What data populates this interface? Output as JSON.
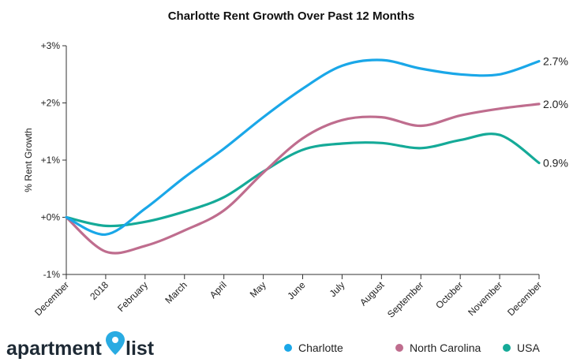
{
  "brand": {
    "logo_word_1": "apartment",
    "logo_word_2": "list",
    "pin_color": "#29abe2",
    "text_color": "#1e2a35"
  },
  "chart_data": {
    "type": "line",
    "title": "Charlotte Rent Growth Over Past 12 Months",
    "xlabel": "",
    "ylabel": "% Rent Growth",
    "categories": [
      "December",
      "2018",
      "February",
      "March",
      "April",
      "May",
      "June",
      "July",
      "August",
      "September",
      "October",
      "November",
      "December"
    ],
    "yticks": [
      {
        "value": 3,
        "label": "+3%"
      },
      {
        "value": 2,
        "label": "+2%"
      },
      {
        "value": 1,
        "label": "+1%"
      },
      {
        "value": 0,
        "label": "+0%"
      },
      {
        "value": -1,
        "label": "-1%"
      }
    ],
    "ylim": [
      -1,
      3
    ],
    "grid": false,
    "legend_position": "bottom-right",
    "series": [
      {
        "name": "Charlotte",
        "color": "#1aa7e8",
        "end_label": "2.7%",
        "values": [
          0.0,
          -0.3,
          0.15,
          0.7,
          1.2,
          1.75,
          2.25,
          2.65,
          2.75,
          2.6,
          2.5,
          2.5,
          2.73
        ]
      },
      {
        "name": "North Carolina",
        "color": "#bf6d8e",
        "end_label": "2.0%",
        "values": [
          0.0,
          -0.6,
          -0.5,
          -0.23,
          0.12,
          0.78,
          1.38,
          1.7,
          1.75,
          1.6,
          1.78,
          1.9,
          1.98
        ]
      },
      {
        "name": "USA",
        "color": "#15aa98",
        "end_label": "0.9%",
        "values": [
          0.0,
          -0.15,
          -0.08,
          0.1,
          0.35,
          0.8,
          1.18,
          1.29,
          1.3,
          1.21,
          1.35,
          1.44,
          0.95
        ]
      }
    ]
  }
}
